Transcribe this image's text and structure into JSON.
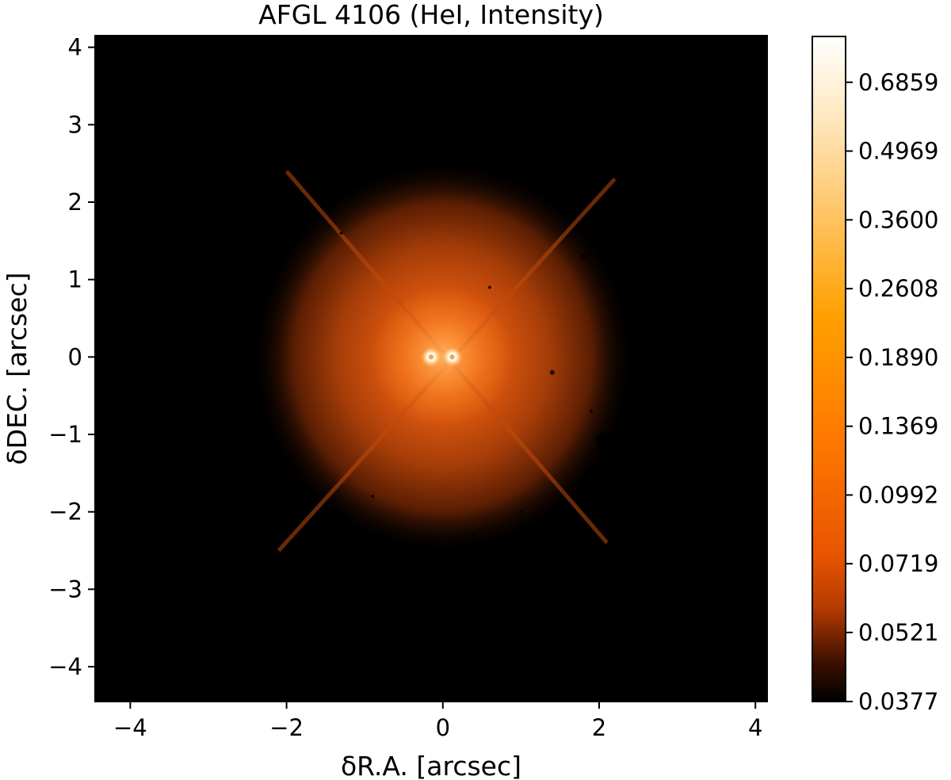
{
  "chart_data": {
    "type": "heatmap",
    "title": "AFGL 4106 (HeI, Intensity)",
    "xlabel": "δR.A. [arcsec]",
    "ylabel": "δDEC. [arcsec]",
    "xlim": [
      -4.45,
      4.15
    ],
    "ylim": [
      -4.45,
      4.15
    ],
    "xticks": [
      -4,
      -2,
      0,
      2,
      4
    ],
    "yticks": [
      -4,
      -3,
      -2,
      -1,
      0,
      1,
      2,
      3,
      4
    ],
    "xtick_labels": [
      "−4",
      "−2",
      "0",
      "2",
      "4"
    ],
    "ytick_labels": [
      "−4",
      "−3",
      "−2",
      "−1",
      "0",
      "1",
      "2",
      "3",
      "4"
    ],
    "colorbar": {
      "ticks": [
        0.0377,
        0.0521,
        0.0719,
        0.0992,
        0.1369,
        0.189,
        0.2608,
        0.36,
        0.4969,
        0.6859
      ],
      "tick_labels": [
        "0.0377",
        "0.0521",
        "0.0719",
        "0.0992",
        "0.1369",
        "0.1890",
        "0.2608",
        "0.3600",
        "0.4969",
        "0.6859"
      ],
      "vmin": 0.0377,
      "vmax": 0.85,
      "scale": "log",
      "colormap": "gist_heat"
    },
    "sources": [
      {
        "x": -0.15,
        "y": 0.0
      },
      {
        "x": 0.12,
        "y": 0.0
      }
    ],
    "colors": {
      "background": "#000000",
      "nebula": "#e8560f",
      "core": "#ffffff"
    }
  }
}
